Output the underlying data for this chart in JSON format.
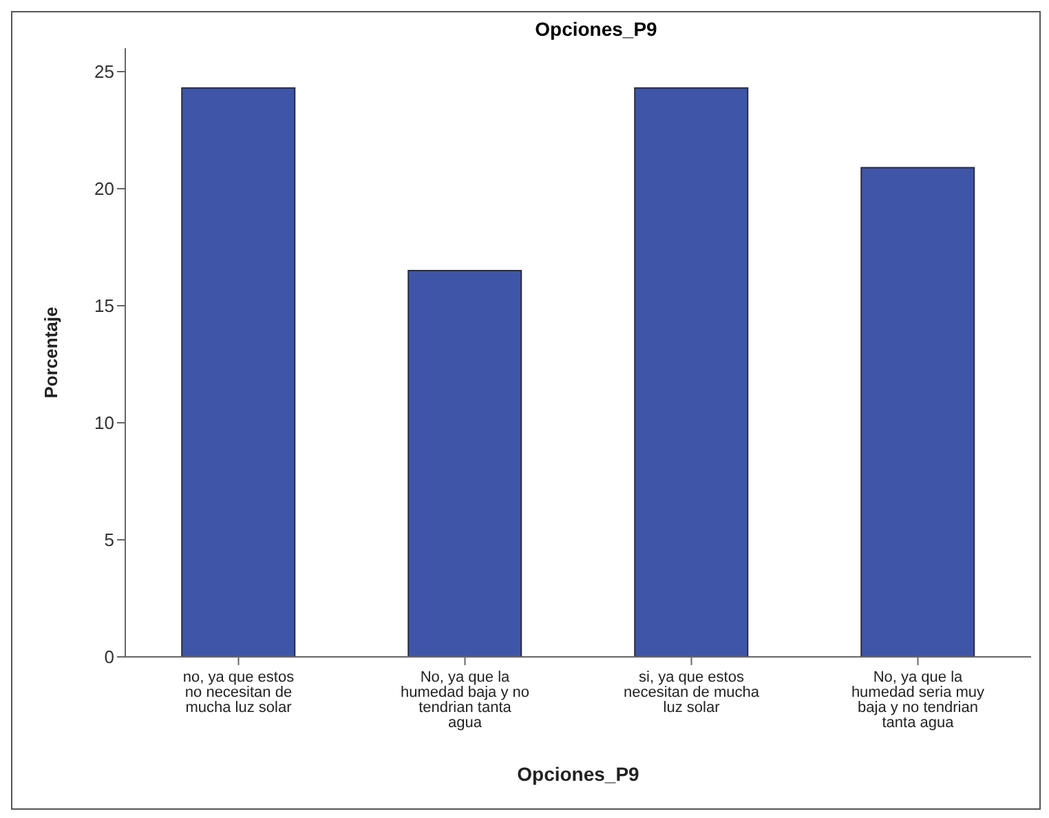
{
  "chart_data": {
    "type": "bar",
    "title": "Opciones_P9",
    "xlabel": "Opciones_P9",
    "ylabel": "Porcentaje",
    "categories": [
      "no, ya que estos no necesitan de mucha luz solar",
      "No, ya que la humedad baja y no tendrian tanta agua",
      "si, ya que estos necesitan de mucha luz solar",
      "No, ya que la humedad seria muy baja y no tendrian tanta agua"
    ],
    "values": [
      24.3,
      16.5,
      24.3,
      20.9
    ],
    "color": "#3f56a8",
    "ylim": [
      0,
      26
    ],
    "yticks": [
      0,
      5,
      10,
      15,
      20,
      25
    ],
    "grid": false
  }
}
